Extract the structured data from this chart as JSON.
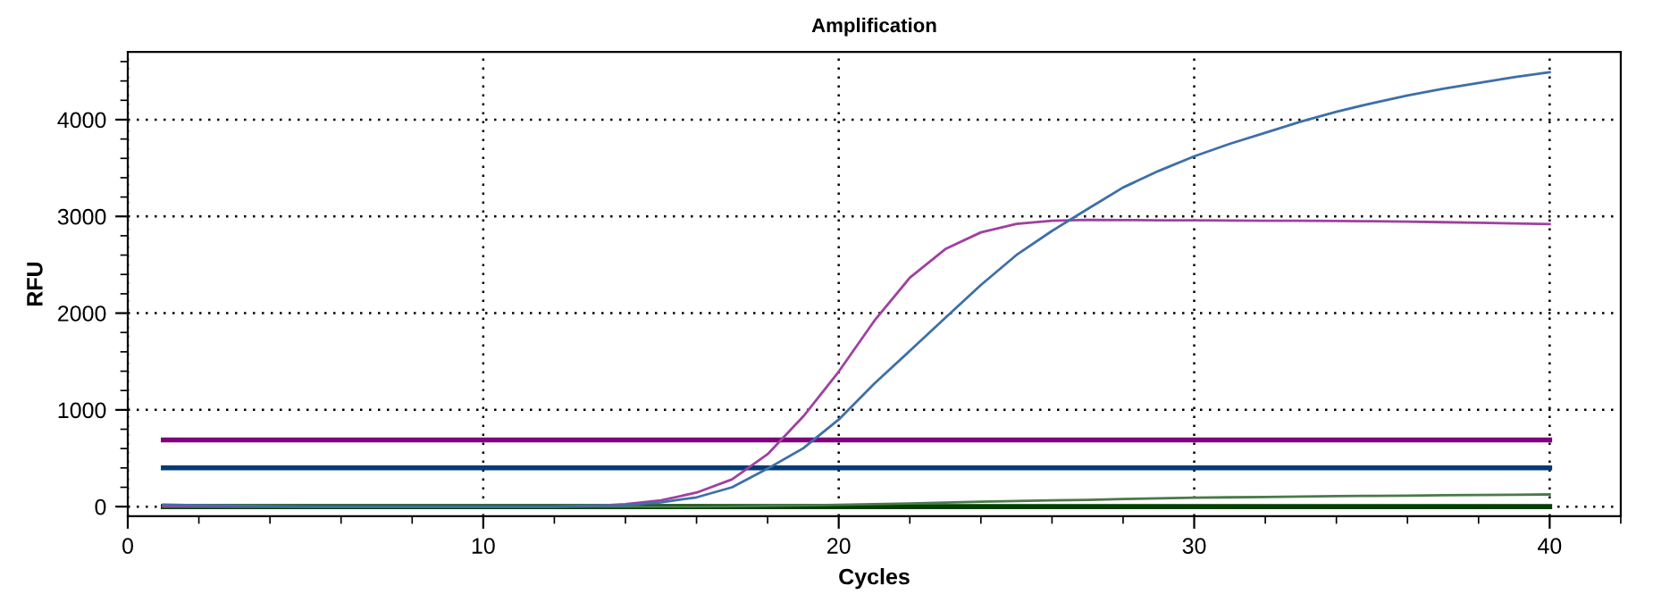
{
  "chart_data": {
    "type": "line",
    "title": "Amplification",
    "xlabel": "Cycles",
    "ylabel": "RFU",
    "xlim": [
      0,
      42
    ],
    "xticks": [
      0,
      10,
      20,
      30,
      40
    ],
    "ylim": [
      -100,
      4700
    ],
    "yticks": [
      0,
      1000,
      2000,
      3000,
      4000
    ],
    "grid": true,
    "line_style": "solid",
    "marker": "none",
    "series": [
      {
        "color": "#800080",
        "x": [
          1,
          40
        ],
        "values": [
          690,
          690
        ]
      },
      {
        "color": "#003c78",
        "x": [
          1,
          40
        ],
        "values": [
          400,
          400
        ]
      },
      {
        "color": "#004000",
        "x": [
          1,
          40
        ],
        "values": [
          0,
          0
        ]
      },
      {
        "color": "#4a7a4a",
        "x": [
          1,
          2,
          3,
          4,
          5,
          6,
          7,
          8,
          9,
          10,
          11,
          12,
          13,
          14,
          15,
          16,
          17,
          18,
          19,
          20,
          21,
          22,
          23,
          24,
          25,
          26,
          27,
          28,
          29,
          30,
          31,
          32,
          33,
          34,
          35,
          36,
          37,
          38,
          39,
          40
        ],
        "values": [
          0,
          0,
          0,
          0,
          0,
          0,
          0,
          0,
          0,
          0,
          0,
          0,
          0,
          0,
          0,
          0,
          3,
          8,
          12,
          18,
          25,
          33,
          42,
          50,
          58,
          64,
          70,
          78,
          85,
          92,
          96,
          100,
          104,
          108,
          111,
          114,
          117,
          120,
          123,
          126
        ]
      },
      {
        "color": "#a040a0",
        "x": [
          1,
          2,
          3,
          4,
          5,
          6,
          7,
          8,
          9,
          10,
          11,
          12,
          13,
          14,
          15,
          16,
          17,
          18,
          19,
          20,
          21,
          22,
          23,
          24,
          25,
          26,
          27,
          28,
          29,
          30,
          31,
          32,
          33,
          34,
          35,
          36,
          37,
          38,
          39,
          40
        ],
        "values": [
          5,
          3,
          0,
          0,
          0,
          0,
          0,
          0,
          0,
          0,
          0,
          0,
          5,
          25,
          65,
          145,
          282,
          542,
          931,
          1395,
          1920,
          2366,
          2662,
          2835,
          2922,
          2955,
          2965,
          2962,
          2960,
          2960,
          2958,
          2956,
          2954,
          2952,
          2950,
          2945,
          2940,
          2935,
          2928,
          2920
        ]
      },
      {
        "color": "#3e6fa8",
        "x": [
          1,
          2,
          3,
          4,
          5,
          6,
          7,
          8,
          9,
          10,
          11,
          12,
          13,
          14,
          15,
          16,
          17,
          18,
          19,
          20,
          21,
          22,
          23,
          24,
          25,
          26,
          27,
          28,
          29,
          30,
          31,
          32,
          33,
          34,
          35,
          36,
          37,
          38,
          39,
          40
        ],
        "values": [
          20,
          15,
          10,
          5,
          0,
          0,
          0,
          0,
          0,
          0,
          0,
          0,
          10,
          15,
          45,
          96,
          200,
          393,
          603,
          900,
          1271,
          1610,
          1952,
          2291,
          2601,
          2850,
          3076,
          3299,
          3470,
          3621,
          3750,
          3865,
          3980,
          4082,
          4170,
          4250,
          4320,
          4380,
          4440,
          4490
        ]
      }
    ]
  }
}
